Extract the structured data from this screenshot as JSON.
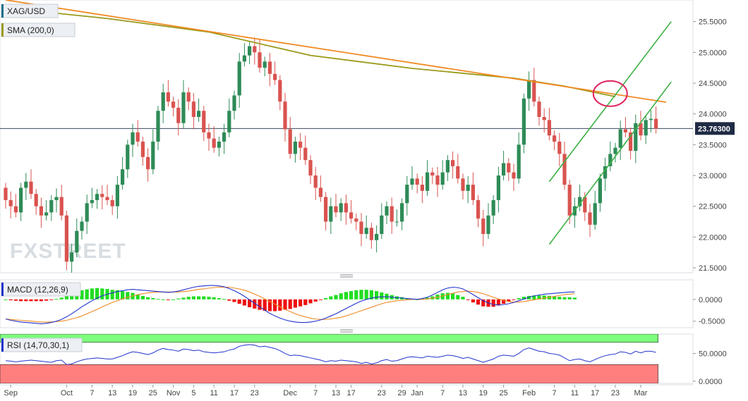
{
  "chart_data": [
    {
      "type": "candlestick",
      "symbol": "XAG/USD",
      "legend": [
        {
          "name": "XAG/USD",
          "color": "#1b6f8a"
        },
        {
          "name": "SMA (200,0)",
          "color": "#9a9a1a"
        }
      ],
      "y_ticks": [
        "25.5000",
        "25.0000",
        "24.5000",
        "24.0000",
        "23.5000",
        "23.0000",
        "22.5000",
        "22.0000",
        "21.5000"
      ],
      "ylim": [
        21.42,
        25.85
      ],
      "current_price": {
        "value": 23.763,
        "label": "23.76300"
      },
      "x_ticks": [
        {
          "label": "Sep",
          "i": 1
        },
        {
          "label": "Oct",
          "i": 12
        },
        {
          "label": "7",
          "i": 17
        },
        {
          "label": "13",
          "i": 21
        },
        {
          "label": "19",
          "i": 25
        },
        {
          "label": "25",
          "i": 29
        },
        {
          "label": "Nov",
          "i": 33
        },
        {
          "label": "5",
          "i": 37
        },
        {
          "label": "11",
          "i": 41
        },
        {
          "label": "17",
          "i": 45
        },
        {
          "label": "23",
          "i": 49
        },
        {
          "label": "Dec",
          "i": 56
        },
        {
          "label": "7",
          "i": 61
        },
        {
          "label": "13",
          "i": 65
        },
        {
          "label": "17",
          "i": 68
        },
        {
          "label": "23",
          "i": 74
        },
        {
          "label": "29",
          "i": 78
        },
        {
          "label": "Jan",
          "i": 81
        },
        {
          "label": "7",
          "i": 86
        },
        {
          "label": "13",
          "i": 90
        },
        {
          "label": "19",
          "i": 94
        },
        {
          "label": "25",
          "i": 98
        },
        {
          "label": "Feb",
          "i": 103
        },
        {
          "label": "7",
          "i": 108
        },
        {
          "label": "11",
          "i": 112
        },
        {
          "label": "17",
          "i": 116
        },
        {
          "label": "23",
          "i": 120
        },
        {
          "label": "Mar",
          "i": 125
        }
      ],
      "close": [
        22.6,
        22.5,
        22.4,
        22.8,
        22.9,
        22.7,
        22.5,
        22.35,
        22.4,
        22.6,
        22.65,
        22.35,
        21.6,
        21.75,
        22.1,
        22.25,
        22.55,
        22.6,
        22.7,
        22.65,
        22.6,
        22.5,
        22.85,
        23.1,
        23.5,
        23.7,
        23.55,
        23.3,
        23.1,
        23.55,
        24.05,
        24.35,
        24.2,
        24.1,
        23.85,
        24.35,
        24.2,
        23.95,
        24.05,
        23.7,
        23.6,
        23.45,
        23.55,
        23.7,
        24.05,
        24.3,
        24.85,
        24.95,
        25.1,
        25.0,
        24.75,
        24.85,
        24.65,
        24.55,
        24.2,
        23.75,
        23.35,
        23.55,
        23.45,
        23.25,
        23.0,
        22.8,
        22.65,
        22.25,
        22.5,
        22.4,
        22.55,
        22.4,
        22.3,
        22.25,
        22.05,
        22.15,
        21.95,
        22.05,
        22.35,
        22.5,
        22.25,
        22.25,
        22.55,
        22.85,
        22.95,
        22.85,
        22.75,
        23.05,
        23.0,
        22.85,
        23.05,
        23.25,
        23.15,
        22.95,
        22.75,
        22.85,
        22.6,
        22.3,
        22.05,
        22.35,
        22.6,
        23.0,
        23.2,
        23.05,
        22.95,
        23.5,
        24.25,
        24.55,
        24.2,
        23.95,
        23.9,
        23.65,
        23.55,
        23.35,
        22.85,
        22.35,
        22.5,
        22.65,
        22.4,
        22.2,
        22.55,
        22.95,
        23.15,
        23.35,
        23.45,
        23.75,
        23.7,
        23.4,
        23.85,
        23.65,
        23.9,
        23.92,
        23.76
      ],
      "open": [
        22.8,
        22.6,
        22.5,
        22.4,
        22.8,
        22.9,
        22.7,
        22.5,
        22.35,
        22.4,
        22.6,
        22.65,
        22.35,
        21.6,
        21.75,
        22.1,
        22.25,
        22.55,
        22.6,
        22.7,
        22.65,
        22.6,
        22.5,
        22.85,
        23.1,
        23.5,
        23.7,
        23.55,
        23.3,
        23.1,
        23.55,
        24.05,
        24.35,
        24.2,
        24.1,
        23.85,
        24.35,
        24.2,
        23.95,
        24.05,
        23.7,
        23.6,
        23.45,
        23.55,
        23.7,
        24.05,
        24.3,
        24.85,
        24.95,
        25.1,
        25.0,
        24.75,
        24.85,
        24.65,
        24.55,
        24.2,
        23.75,
        23.35,
        23.55,
        23.45,
        23.25,
        23.0,
        22.8,
        22.65,
        22.25,
        22.5,
        22.4,
        22.55,
        22.4,
        22.3,
        22.25,
        22.05,
        22.15,
        21.95,
        22.05,
        22.35,
        22.5,
        22.25,
        22.25,
        22.55,
        22.85,
        22.95,
        22.85,
        22.75,
        23.05,
        23.0,
        22.85,
        23.05,
        23.25,
        23.15,
        22.95,
        22.75,
        22.85,
        22.6,
        22.3,
        22.05,
        22.35,
        22.6,
        23.0,
        23.2,
        23.05,
        22.95,
        23.5,
        24.25,
        24.55,
        24.2,
        23.95,
        23.9,
        23.65,
        23.55,
        23.35,
        22.85,
        22.35,
        22.5,
        22.65,
        22.4,
        22.2,
        22.55,
        22.95,
        23.15,
        23.35,
        23.45,
        23.75,
        23.7,
        23.4,
        23.85,
        23.65,
        23.9,
        23.92
      ],
      "sma_200": [
        {
          "i": 0,
          "v": 25.72
        },
        {
          "i": 20,
          "v": 25.55
        },
        {
          "i": 40,
          "v": 25.33
        },
        {
          "i": 60,
          "v": 24.95
        },
        {
          "i": 80,
          "v": 24.74
        },
        {
          "i": 100,
          "v": 24.58
        },
        {
          "i": 110,
          "v": 24.45
        },
        {
          "i": 120,
          "v": 24.28
        }
      ],
      "annotations": {
        "downtrend_line": [
          {
            "i": 0,
            "v": 25.85
          },
          {
            "i": 130,
            "v": 24.19
          }
        ],
        "channel_upper": [
          {
            "i": 107,
            "v": 22.9
          },
          {
            "i": 131,
            "v": 25.5
          }
        ],
        "channel_lower": [
          {
            "i": 107,
            "v": 21.88
          },
          {
            "i": 131,
            "v": 24.52
          }
        ],
        "ellipse_center": {
          "i": 119,
          "v": 24.33
        }
      }
    },
    {
      "type": "macd",
      "label": "MACD (12,26,9)",
      "y_ticks": [
        "0.0000",
        "-0.5000"
      ],
      "ylim": [
        -0.65,
        0.45
      ],
      "macd": [
        -0.45,
        -0.48,
        -0.5,
        -0.52,
        -0.53,
        -0.54,
        -0.55,
        -0.56,
        -0.55,
        -0.53,
        -0.5,
        -0.46,
        -0.4,
        -0.33,
        -0.25,
        -0.17,
        -0.1,
        -0.03,
        0.03,
        0.08,
        0.12,
        0.15,
        0.18,
        0.2,
        0.22,
        0.23,
        0.22,
        0.21,
        0.2,
        0.19,
        0.18,
        0.17,
        0.16,
        0.17,
        0.19,
        0.22,
        0.25,
        0.28,
        0.3,
        0.31,
        0.32,
        0.32,
        0.31,
        0.29,
        0.25,
        0.2,
        0.14,
        0.07,
        -0.01,
        -0.09,
        -0.17,
        -0.25,
        -0.32,
        -0.38,
        -0.43,
        -0.47,
        -0.5,
        -0.52,
        -0.53,
        -0.53,
        -0.52,
        -0.5,
        -0.47,
        -0.43,
        -0.38,
        -0.33,
        -0.27,
        -0.21,
        -0.15,
        -0.09,
        -0.04,
        0.0,
        0.03,
        0.05,
        0.06,
        0.06,
        0.05,
        0.04,
        0.03,
        0.02,
        0.01,
        0.0,
        0.02,
        0.05,
        0.1,
        0.16,
        0.22,
        0.26,
        0.28,
        0.27,
        0.24,
        0.18,
        0.11,
        0.04,
        -0.03,
        -0.08,
        -0.12,
        -0.13,
        -0.12,
        -0.1,
        -0.07,
        -0.03,
        0.01,
        0.05,
        0.08,
        0.1,
        0.12,
        0.13,
        0.14,
        0.15,
        0.16,
        0.17,
        0.17
      ],
      "signal": [
        -0.45,
        -0.46,
        -0.47,
        -0.48,
        -0.49,
        -0.5,
        -0.51,
        -0.52,
        -0.52,
        -0.52,
        -0.51,
        -0.5,
        -0.48,
        -0.45,
        -0.42,
        -0.38,
        -0.33,
        -0.28,
        -0.23,
        -0.17,
        -0.12,
        -0.07,
        -0.03,
        0.01,
        0.05,
        0.08,
        0.11,
        0.13,
        0.15,
        0.16,
        0.17,
        0.17,
        0.17,
        0.17,
        0.17,
        0.18,
        0.19,
        0.21,
        0.23,
        0.24,
        0.26,
        0.27,
        0.28,
        0.28,
        0.28,
        0.26,
        0.24,
        0.21,
        0.17,
        0.12,
        0.07,
        0.01,
        -0.05,
        -0.11,
        -0.17,
        -0.23,
        -0.28,
        -0.33,
        -0.37,
        -0.4,
        -0.43,
        -0.45,
        -0.46,
        -0.46,
        -0.45,
        -0.43,
        -0.41,
        -0.38,
        -0.34,
        -0.3,
        -0.26,
        -0.22,
        -0.18,
        -0.14,
        -0.1,
        -0.07,
        -0.05,
        -0.03,
        -0.02,
        -0.01,
        0.0,
        0.0,
        0.0,
        0.01,
        0.03,
        0.05,
        0.08,
        0.11,
        0.14,
        0.17,
        0.18,
        0.19,
        0.18,
        0.16,
        0.13,
        0.09,
        0.05,
        0.01,
        -0.02,
        -0.05,
        -0.06,
        -0.06,
        -0.05,
        -0.03,
        -0.01,
        0.01,
        0.03,
        0.05,
        0.07,
        0.09,
        0.11,
        0.12,
        0.13
      ]
    },
    {
      "type": "rsi",
      "label": "RSI (14,70,30,1)",
      "y_ticks": [
        "50.0000",
        "0.0000"
      ],
      "ylim": [
        -4,
        85
      ],
      "overbought": 70,
      "oversold": 30,
      "values": [
        37,
        36,
        35,
        36,
        37,
        38,
        37,
        36,
        35,
        34,
        37,
        38,
        30,
        31,
        35,
        38,
        40,
        41,
        42,
        41,
        40,
        40,
        43,
        46,
        50,
        53,
        52,
        50,
        48,
        51,
        56,
        59,
        57,
        56,
        54,
        58,
        57,
        55,
        56,
        53,
        52,
        51,
        52,
        53,
        56,
        58,
        63,
        65,
        66,
        65,
        62,
        63,
        61,
        59,
        55,
        50,
        46,
        47,
        46,
        44,
        42,
        40,
        38,
        35,
        37,
        36,
        38,
        37,
        36,
        35,
        32,
        34,
        31,
        33,
        37,
        39,
        36,
        37,
        40,
        43,
        44,
        43,
        42,
        45,
        44,
        43,
        45,
        47,
        46,
        44,
        41,
        43,
        40,
        37,
        34,
        37,
        40,
        45,
        47,
        46,
        45,
        50,
        57,
        60,
        57,
        54,
        53,
        50,
        49,
        47,
        42,
        37,
        39,
        40,
        37,
        35,
        39,
        43,
        46,
        48,
        49,
        53,
        52,
        49,
        54,
        51,
        54,
        54,
        52
      ]
    }
  ],
  "watermark": "FXSTREET"
}
